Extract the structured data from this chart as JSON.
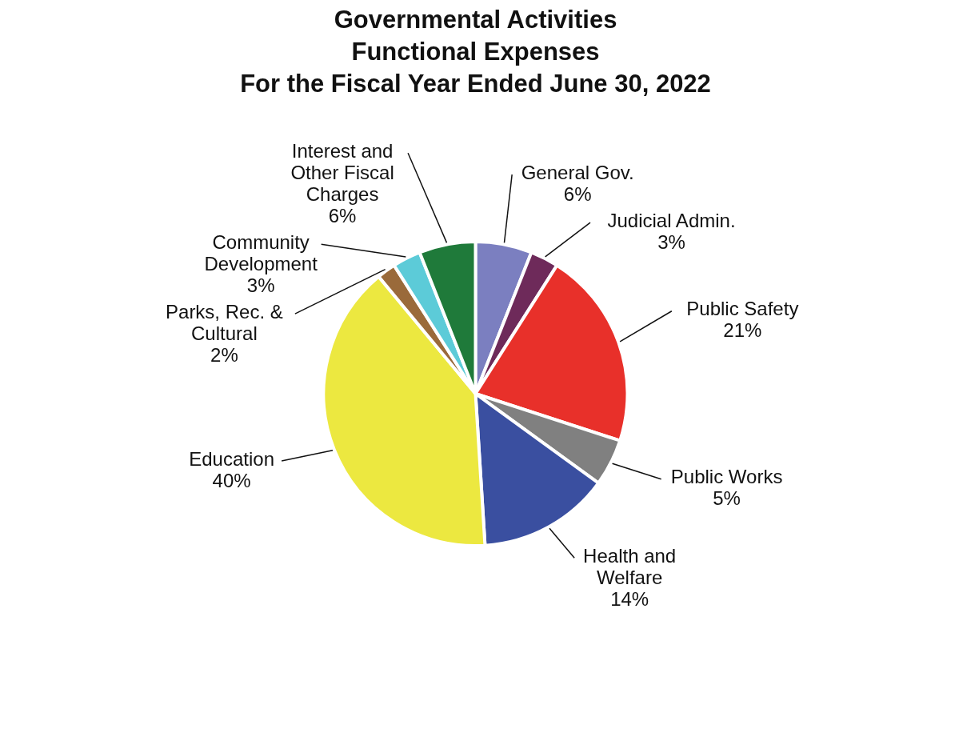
{
  "chart_data": {
    "type": "pie",
    "title": "Governmental Activities\nFunctional Expenses\nFor the Fiscal Year Ended June 30, 2022",
    "categories": [
      "General Gov.",
      "Judicial Admin.",
      "Public Safety",
      "Public Works",
      "Health and Welfare",
      "Education",
      "Parks, Rec. & Cultural",
      "Community Development",
      "Interest and Other Fiscal Charges"
    ],
    "values": [
      6,
      3,
      21,
      5,
      14,
      40,
      2,
      3,
      6
    ],
    "value_labels": [
      "6%",
      "3%",
      "21%",
      "5%",
      "14%",
      "40%",
      "2%",
      "3%",
      "6%"
    ],
    "colors": [
      "#7b7fc0",
      "#6e2a5a",
      "#e8302a",
      "#808080",
      "#3a4fa0",
      "#ece840",
      "#9a6a3a",
      "#5ccbd8",
      "#1f7a3a"
    ],
    "legend": false
  }
}
